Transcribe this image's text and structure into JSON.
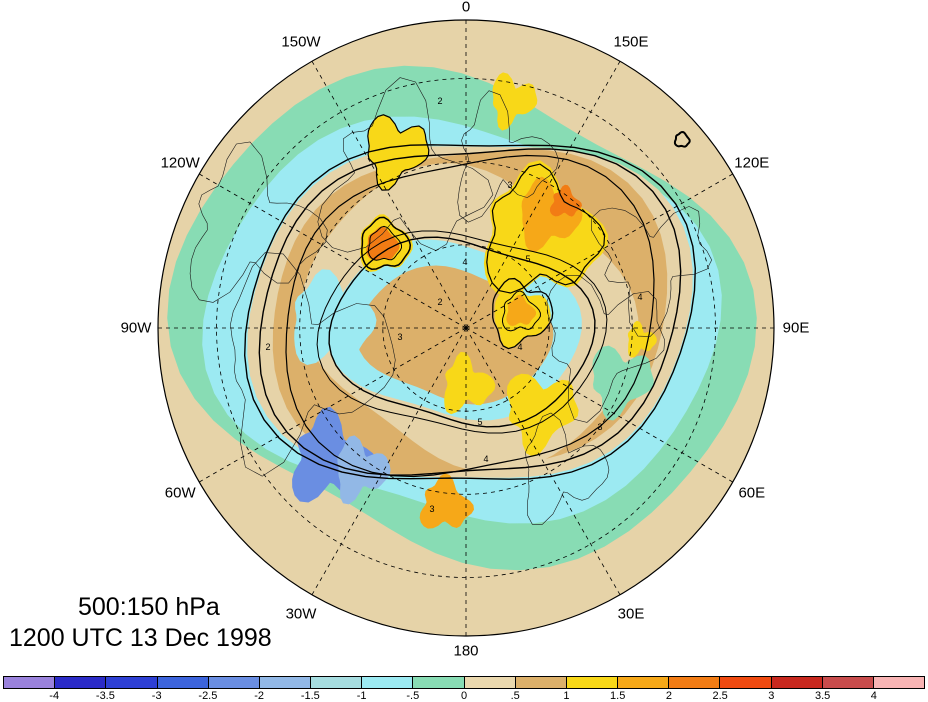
{
  "title": {
    "levels": "500:150 hPa",
    "datetime": "1200 UTC 13 Dec 1998"
  },
  "longitude_labels": [
    {
      "text": "0",
      "lon": 0
    },
    {
      "text": "30W",
      "lon": -30
    },
    {
      "text": "60W",
      "lon": -60
    },
    {
      "text": "90W",
      "lon": -90
    },
    {
      "text": "120W",
      "lon": -120
    },
    {
      "text": "150W",
      "lon": -150
    },
    {
      "text": "180",
      "lon": 180
    },
    {
      "text": "150E",
      "lon": 150
    },
    {
      "text": "120E",
      "lon": 120
    },
    {
      "text": "90E",
      "lon": 90
    },
    {
      "text": "60E",
      "lon": 60
    },
    {
      "text": "30E",
      "lon": 30
    }
  ],
  "colorbar": {
    "labels": [
      "-4",
      "-3.5",
      "-3",
      "-2.5",
      "-2",
      "-1.5",
      "-1",
      "-.5",
      "0",
      ".5",
      "1",
      "1.5",
      "2",
      "2.5",
      "3",
      "3.5",
      "4"
    ],
    "colors": [
      "#9a82dc",
      "#2b2bc8",
      "#2d3fd4",
      "#3c64dc",
      "#6a8ee2",
      "#92b8e6",
      "#a6dde0",
      "#9ceaf2",
      "#88dcb4",
      "#ead8ae",
      "#dcb06a",
      "#f8d818",
      "#f6a818",
      "#f27c14",
      "#f04a10",
      "#c8281e",
      "#c84c4c",
      "#f8b4b4"
    ]
  },
  "map": {
    "projection": "north polar stereographic",
    "background_color": "#e6d3a8",
    "gridline_style": "dashed"
  },
  "field_contour_labels": [
    "2",
    "3",
    "4",
    "5",
    "2",
    "3",
    "4",
    "5",
    "3",
    "4",
    "3",
    "2",
    "4"
  ]
}
